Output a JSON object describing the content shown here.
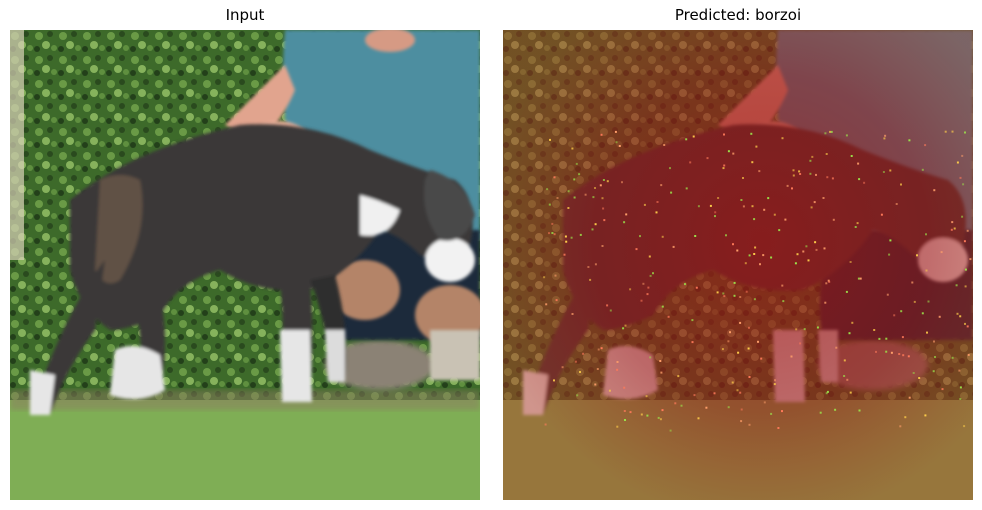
{
  "figure": {
    "left_title": "Input",
    "right_title": "Predicted: borzoi"
  },
  "colors": {
    "lawn": "#7fae55",
    "foliage": "#3f6b2c",
    "dog_fur": "#3a3838",
    "dog_white": "#e6e6e6",
    "shirt": "#4e8ea0",
    "skin": "#e1a48e",
    "shorts": "#1c2a3a",
    "overlay_red": "#a01414",
    "saliency_green": "#9be64b"
  }
}
